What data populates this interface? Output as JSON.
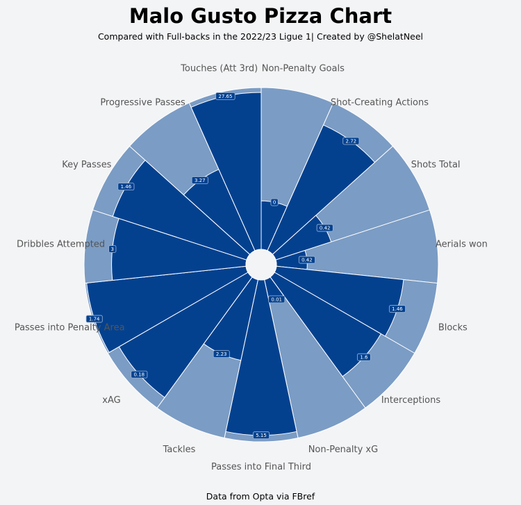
{
  "chart_data": {
    "type": "pie",
    "subtype": "pizza",
    "title": "Malo Gusto Pizza Chart",
    "subtitle": "Compared with Full-backs in the 2022/23 Ligue 1| Created by @ShelatNeel",
    "credit": "Data from Opta via FBref",
    "range": [
      0,
      100
    ],
    "colors": {
      "slice": "#03418f",
      "background_slice": "#7b9cc4",
      "background": "#f3f4f6",
      "label": "#555555",
      "border": "#ffffff"
    },
    "params": [
      {
        "name": "Non-Penalty Goals",
        "value": "0",
        "percentile": 30
      },
      {
        "name": "Shot-Creating Actions",
        "value": "2.72",
        "percentile": 85
      },
      {
        "name": "Shots Total",
        "value": "0.42",
        "percentile": 36
      },
      {
        "name": "Aerials won",
        "value": "0.42",
        "percentile": 19
      },
      {
        "name": "Blocks",
        "value": "1.46",
        "percentile": 79
      },
      {
        "name": "Interceptions",
        "value": "1.6",
        "percentile": 76
      },
      {
        "name": "Non-Penalty xG",
        "value": "0.01",
        "percentile": 14
      },
      {
        "name": "Passes into Final Third",
        "value": "5.15",
        "percentile": 96
      },
      {
        "name": "Tackles",
        "value": "2.23",
        "percentile": 51
      },
      {
        "name": "xAG",
        "value": "0.18",
        "percentile": 92
      },
      {
        "name": "Passes into Penalty Area",
        "value": "1.74",
        "percentile": 99
      },
      {
        "name": "Dribbles Attempted",
        "value": "3",
        "percentile": 83
      },
      {
        "name": "Key Passes",
        "value": "1.46",
        "percentile": 87
      },
      {
        "name": "Progressive Passes",
        "value": "3.27",
        "percentile": 55
      },
      {
        "name": "Touches (Att 3rd)",
        "value": "27.65",
        "percentile": 97
      }
    ]
  }
}
